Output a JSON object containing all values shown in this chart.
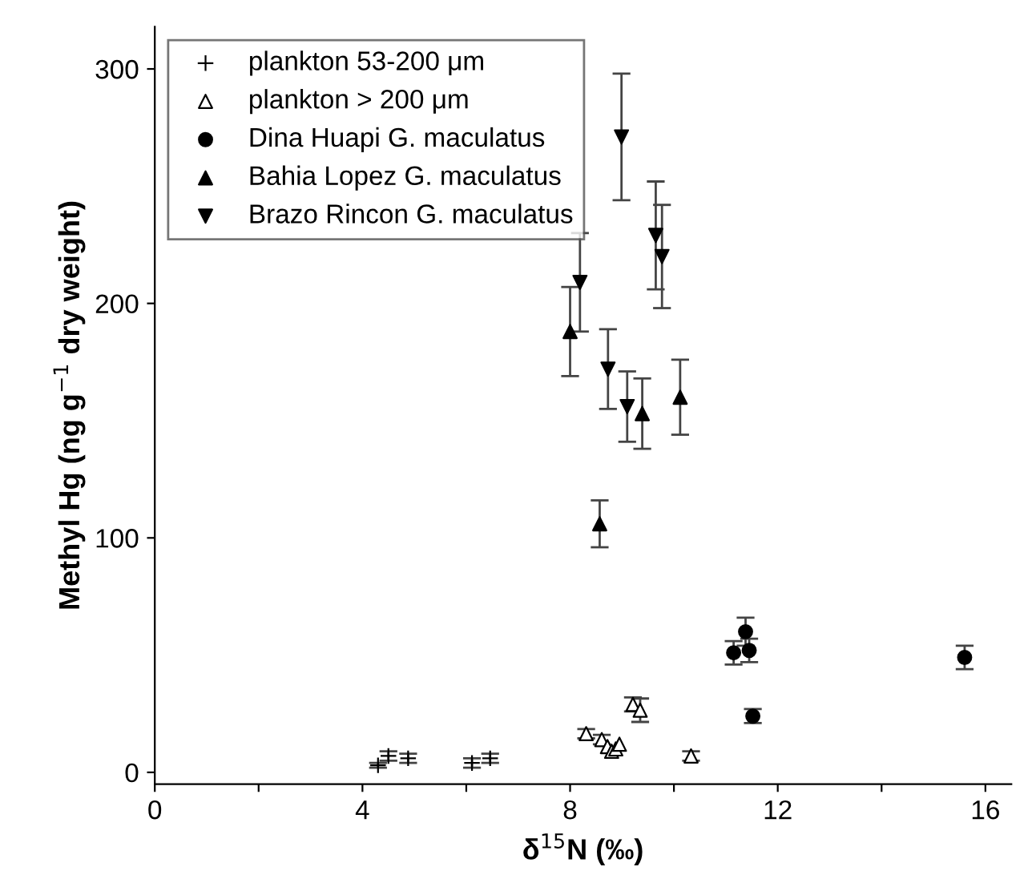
{
  "chart_data": {
    "type": "scatter",
    "xlabel": "δ$^{15}$N (‰)",
    "ylabel": "Methyl Hg (ng g$^{−1}$ dry weight)",
    "xlim": [
      0,
      16.5
    ],
    "ylim": [
      -5,
      318
    ],
    "xticks": [
      0,
      {
        "value": 2,
        "label": null
      },
      4,
      {
        "value": 6,
        "label": null
      },
      8,
      {
        "value": 10,
        "label": null
      },
      12,
      {
        "value": 14,
        "label": null
      },
      16
    ],
    "yticks": [
      0,
      100,
      200,
      300
    ],
    "legend": "top left",
    "grid": false,
    "series": [
      {
        "name": "plankton 53-200 μm",
        "color": "#000000",
        "marker": "cross",
        "x": [
          4.3,
          4.5,
          4.88,
          6.11,
          6.46
        ],
        "values": [
          3,
          7,
          6,
          4,
          6
        ],
        "errors": [
          1,
          2,
          2,
          2,
          2
        ]
      },
      {
        "name": "plankton > 200 μm",
        "color": "#ffffff",
        "marker": "triangle",
        "x": [
          8.31,
          8.61,
          8.72,
          8.8,
          8.88,
          8.95,
          9.21,
          9.35,
          10.33
        ],
        "values": [
          16.5,
          14,
          11,
          9,
          10,
          12,
          29,
          26.5,
          7
        ],
        "errors": [
          2,
          2,
          null,
          null,
          null,
          null,
          3,
          5,
          2
        ]
      },
      {
        "name": "Dina Huapi G. maculatus",
        "color": "#000000",
        "marker": "circle",
        "x": [
          11.15,
          11.38,
          11.45,
          11.52,
          15.6
        ],
        "values": [
          51,
          60,
          52,
          24,
          49
        ],
        "errors": [
          5,
          6,
          5,
          3,
          5
        ]
      },
      {
        "name": "Bahia Lopez G. maculatus",
        "color": "#000000",
        "marker": "triangle",
        "x": [
          8.0,
          9.39,
          10.12,
          8.57
        ],
        "values": [
          188,
          153,
          160,
          106
        ],
        "errors": [
          19,
          15,
          16,
          10
        ]
      },
      {
        "name": "Brazo Rincon G. maculatus",
        "color": "#000000",
        "marker": "triangle_down",
        "x": [
          8.99,
          8.19,
          9.65,
          9.77,
          8.73,
          9.1
        ],
        "values": [
          271,
          209,
          229,
          220,
          172,
          156
        ],
        "errors": [
          27,
          21,
          23,
          22,
          17,
          15
        ]
      }
    ]
  }
}
